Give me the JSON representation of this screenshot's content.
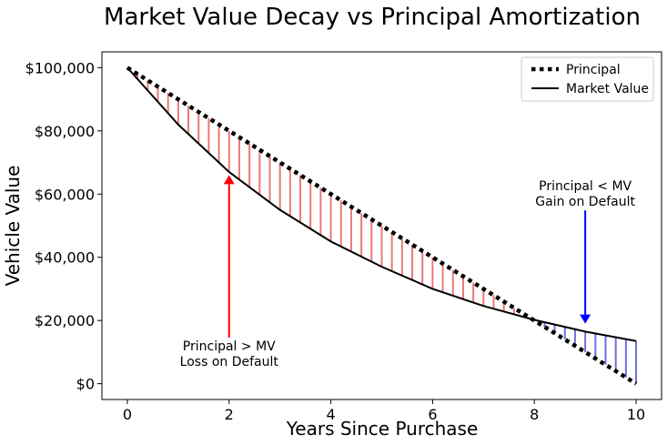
{
  "chart_data": {
    "type": "line",
    "title": "Market Value Decay vs Principal Amortization",
    "xlabel": "Years Since Purchase",
    "ylabel": "Vehicle Value",
    "xlim": [
      -0.5,
      10.5
    ],
    "ylim": [
      -5000,
      105000
    ],
    "xticks": [
      0,
      2,
      4,
      6,
      8,
      10
    ],
    "xtick_labels": [
      "0",
      "2",
      "4",
      "6",
      "8",
      "10"
    ],
    "yticks": [
      0,
      20000,
      40000,
      60000,
      80000,
      100000
    ],
    "ytick_labels": [
      "$0",
      "$20,000",
      "$40,000",
      "$60,000",
      "$80,000",
      "$100,000"
    ],
    "grid": false,
    "legend_position": "top-right",
    "series": [
      {
        "name": "Principal",
        "style": "dotted",
        "color": "#000000",
        "x": [
          0,
          10
        ],
        "y": [
          100000,
          0
        ]
      },
      {
        "name": "Market Value",
        "style": "solid",
        "color": "#000000",
        "x": [
          0,
          1,
          2,
          3,
          4,
          5,
          6,
          7,
          8,
          9,
          10
        ],
        "y": [
          100000,
          82000,
          67000,
          55000,
          45000,
          37000,
          30000,
          24600,
          20200,
          16500,
          13500
        ]
      }
    ],
    "fill_between": [
      {
        "region": "Principal > MV",
        "color": "#e87a7a",
        "x_range": [
          0,
          8
        ]
      },
      {
        "region": "Principal < MV",
        "color": "#6f6fe0",
        "x_range": [
          8,
          10
        ]
      }
    ],
    "annotations": [
      {
        "text_lines": [
          "Principal > MV",
          "Loss on Default"
        ],
        "arrow_color": "#ff0000",
        "xy": [
          2,
          66000
        ],
        "xytext": [
          2,
          12000
        ]
      },
      {
        "text_lines": [
          "Principal < MV",
          "Gain on Default"
        ],
        "arrow_color": "#0000ff",
        "xy": [
          9,
          19000
        ],
        "xytext": [
          9,
          58000
        ]
      }
    ]
  }
}
